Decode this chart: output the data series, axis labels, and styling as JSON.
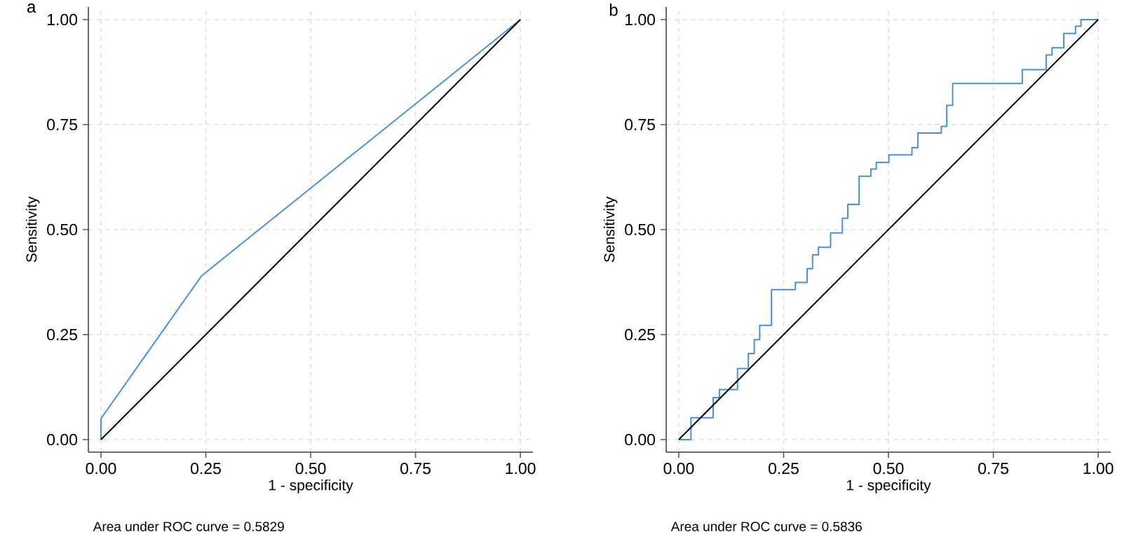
{
  "chart_data": [
    {
      "type": "line",
      "title": "a",
      "xlabel": "1 - specificity",
      "ylabel": "Sensitivity",
      "annotations": [
        "Area under ROC curve = 0.5829"
      ],
      "xlim": [
        -0.03,
        1.03
      ],
      "ylim": [
        -0.03,
        1.03
      ],
      "xticks": [
        {
          "value": 0,
          "label": "0.00"
        },
        {
          "value": 0.25,
          "label": "0.25"
        },
        {
          "value": 0.5,
          "label": "0.50"
        },
        {
          "value": 0.75,
          "label": "0.75"
        },
        {
          "value": 1,
          "label": "1.00"
        }
      ],
      "yticks": [
        {
          "value": 0,
          "label": "0.00"
        },
        {
          "value": 0.25,
          "label": "0.25"
        },
        {
          "value": 0.5,
          "label": "0.50"
        },
        {
          "value": 0.75,
          "label": "0.75"
        },
        {
          "value": 1,
          "label": "1.00"
        }
      ],
      "grid": true,
      "series": [
        {
          "color": "#4a90d9",
          "x": [
            0,
            0,
            0.24,
            1
          ],
          "values": [
            0,
            0.05,
            0.39,
            1
          ]
        },
        {
          "color": "#000000",
          "x": [
            0,
            1
          ],
          "values": [
            0,
            1
          ]
        }
      ]
    },
    {
      "type": "line",
      "title": "b",
      "xlabel": "1 - specificity",
      "ylabel": "Sensitivity",
      "annotations": [
        "Area under ROC curve = 0.5836"
      ],
      "xlim": [
        -0.03,
        1.03
      ],
      "ylim": [
        -0.03,
        1.03
      ],
      "xticks": [
        {
          "value": 0,
          "label": "0.00"
        },
        {
          "value": 0.25,
          "label": "0.25"
        },
        {
          "value": 0.5,
          "label": "0.50"
        },
        {
          "value": 0.75,
          "label": "0.75"
        },
        {
          "value": 1,
          "label": "1.00"
        }
      ],
      "yticks": [
        {
          "value": 0,
          "label": "0.00"
        },
        {
          "value": 0.25,
          "label": "0.25"
        },
        {
          "value": 0.5,
          "label": "0.50"
        },
        {
          "value": 0.75,
          "label": "0.75"
        },
        {
          "value": 1,
          "label": "1.00"
        }
      ],
      "grid": true,
      "series": [
        {
          "type": "step",
          "color": "#4a90d9",
          "x": [
            0,
            0.029,
            0.082,
            0.097,
            0.14,
            0.166,
            0.18,
            0.193,
            0.221,
            0.278,
            0.306,
            0.319,
            0.333,
            0.362,
            0.39,
            0.403,
            0.43,
            0.458,
            0.471,
            0.501,
            0.556,
            0.57,
            0.626,
            0.639,
            0.653,
            0.819,
            0.876,
            0.89,
            0.918,
            0.946,
            0.959,
            1.0
          ],
          "values": [
            0,
            0.052,
            0.1,
            0.119,
            0.169,
            0.205,
            0.238,
            0.272,
            0.357,
            0.374,
            0.407,
            0.44,
            0.458,
            0.492,
            0.527,
            0.56,
            0.627,
            0.644,
            0.66,
            0.678,
            0.695,
            0.73,
            0.746,
            0.796,
            0.848,
            0.881,
            0.916,
            0.933,
            0.967,
            0.984,
            1.0,
            1.0
          ]
        },
        {
          "color": "#000000",
          "x": [
            0,
            1
          ],
          "values": [
            0,
            1
          ]
        }
      ]
    }
  ]
}
